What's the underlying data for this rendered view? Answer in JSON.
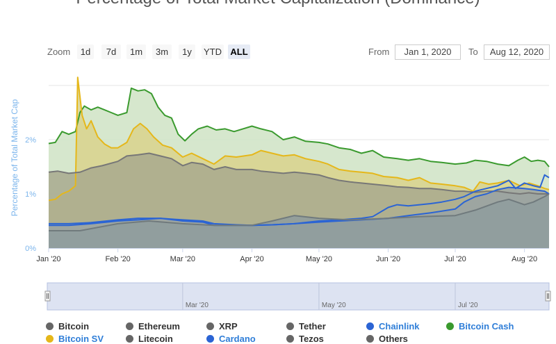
{
  "title": "Percentage of Total Market Capitalization (Dominance)",
  "zoom": {
    "label": "Zoom",
    "buttons": [
      "1d",
      "7d",
      "1m",
      "3m",
      "1y",
      "YTD",
      "ALL"
    ],
    "active": "ALL"
  },
  "range": {
    "from_label": "From",
    "from_value": "Jan 1, 2020",
    "to_label": "To",
    "to_value": "Aug 12, 2020"
  },
  "navigator": {
    "labels": [
      "Mar '20",
      "May '20",
      "Jul '20"
    ]
  },
  "legend": [
    {
      "name": "Bitcoin",
      "color": "#666666"
    },
    {
      "name": "Ethereum",
      "color": "#666666"
    },
    {
      "name": "XRP",
      "color": "#666666"
    },
    {
      "name": "Tether",
      "color": "#666666"
    },
    {
      "name": "Chainlink",
      "color": "#2b64d4"
    },
    {
      "name": "Bitcoin Cash",
      "color": "#3a9a2e"
    },
    {
      "name": "Bitcoin SV",
      "color": "#e5b71a"
    },
    {
      "name": "Litecoin",
      "color": "#666666"
    },
    {
      "name": "Cardano",
      "color": "#2b64d4"
    },
    {
      "name": "Tezos",
      "color": "#666666"
    },
    {
      "name": "Others",
      "color": "#666666"
    }
  ],
  "chart_data": {
    "type": "area",
    "ylabel": "Percentage of Total Market Cap",
    "ylim": [
      0,
      3
    ],
    "yticks": [
      "0%",
      "1%",
      "2%"
    ],
    "yticks_values": [
      0,
      1,
      2
    ],
    "x_domain": [
      "2020-01-01",
      "2020-08-12"
    ],
    "x_ticks": [
      {
        "label": "Jan '20",
        "date": "2020-01-01"
      },
      {
        "label": "Feb '20",
        "date": "2020-02-01"
      },
      {
        "label": "Mar '20",
        "date": "2020-03-01"
      },
      {
        "label": "Apr '20",
        "date": "2020-04-01"
      },
      {
        "label": "May '20",
        "date": "2020-05-01"
      },
      {
        "label": "Jun '20",
        "date": "2020-06-01"
      },
      {
        "label": "Jul '20",
        "date": "2020-07-01"
      },
      {
        "label": "Aug '20",
        "date": "2020-08-01"
      }
    ],
    "grid": true,
    "legend_position": "bottom",
    "series": [
      {
        "name": "Bitcoin Cash",
        "color": "#3a9a2e",
        "fill": "#cfe3c4",
        "points": [
          [
            "2020-01-01",
            1.93
          ],
          [
            "2020-01-04",
            1.95
          ],
          [
            "2020-01-07",
            2.15
          ],
          [
            "2020-01-10",
            2.1
          ],
          [
            "2020-01-13",
            2.15
          ],
          [
            "2020-01-15",
            2.5
          ],
          [
            "2020-01-17",
            2.62
          ],
          [
            "2020-01-20",
            2.55
          ],
          [
            "2020-01-23",
            2.6
          ],
          [
            "2020-01-26",
            2.55
          ],
          [
            "2020-01-29",
            2.5
          ],
          [
            "2020-02-01",
            2.45
          ],
          [
            "2020-02-05",
            2.5
          ],
          [
            "2020-02-07",
            2.95
          ],
          [
            "2020-02-10",
            2.9
          ],
          [
            "2020-02-13",
            2.92
          ],
          [
            "2020-02-16",
            2.85
          ],
          [
            "2020-02-19",
            2.6
          ],
          [
            "2020-02-22",
            2.45
          ],
          [
            "2020-02-25",
            2.4
          ],
          [
            "2020-02-28",
            2.1
          ],
          [
            "2020-03-02",
            1.98
          ],
          [
            "2020-03-05",
            2.1
          ],
          [
            "2020-03-08",
            2.2
          ],
          [
            "2020-03-12",
            2.25
          ],
          [
            "2020-03-16",
            2.18
          ],
          [
            "2020-03-20",
            2.2
          ],
          [
            "2020-03-24",
            2.15
          ],
          [
            "2020-03-28",
            2.2
          ],
          [
            "2020-04-01",
            2.25
          ],
          [
            "2020-04-05",
            2.2
          ],
          [
            "2020-04-10",
            2.15
          ],
          [
            "2020-04-15",
            2.0
          ],
          [
            "2020-04-20",
            2.05
          ],
          [
            "2020-04-25",
            1.97
          ],
          [
            "2020-05-01",
            1.95
          ],
          [
            "2020-05-05",
            1.92
          ],
          [
            "2020-05-10",
            1.85
          ],
          [
            "2020-05-15",
            1.82
          ],
          [
            "2020-05-20",
            1.75
          ],
          [
            "2020-05-25",
            1.8
          ],
          [
            "2020-05-30",
            1.68
          ],
          [
            "2020-06-05",
            1.65
          ],
          [
            "2020-06-10",
            1.62
          ],
          [
            "2020-06-15",
            1.65
          ],
          [
            "2020-06-20",
            1.6
          ],
          [
            "2020-06-25",
            1.58
          ],
          [
            "2020-07-01",
            1.55
          ],
          [
            "2020-07-06",
            1.57
          ],
          [
            "2020-07-10",
            1.62
          ],
          [
            "2020-07-15",
            1.6
          ],
          [
            "2020-07-20",
            1.55
          ],
          [
            "2020-07-25",
            1.52
          ],
          [
            "2020-07-29",
            1.62
          ],
          [
            "2020-08-01",
            1.68
          ],
          [
            "2020-08-04",
            1.6
          ],
          [
            "2020-08-07",
            1.62
          ],
          [
            "2020-08-10",
            1.6
          ],
          [
            "2020-08-12",
            1.5
          ]
        ]
      },
      {
        "name": "Bitcoin SV",
        "color": "#e5b71a",
        "fill": "#d9d28c",
        "points": [
          [
            "2020-01-01",
            0.88
          ],
          [
            "2020-01-04",
            0.9
          ],
          [
            "2020-01-07",
            1.0
          ],
          [
            "2020-01-10",
            1.05
          ],
          [
            "2020-01-13",
            1.15
          ],
          [
            "2020-01-14",
            3.15
          ],
          [
            "2020-01-16",
            2.45
          ],
          [
            "2020-01-18",
            2.2
          ],
          [
            "2020-01-20",
            2.35
          ],
          [
            "2020-01-23",
            2.05
          ],
          [
            "2020-01-26",
            1.92
          ],
          [
            "2020-01-29",
            1.85
          ],
          [
            "2020-02-01",
            1.85
          ],
          [
            "2020-02-05",
            1.95
          ],
          [
            "2020-02-08",
            2.2
          ],
          [
            "2020-02-11",
            2.3
          ],
          [
            "2020-02-14",
            2.2
          ],
          [
            "2020-02-17",
            2.05
          ],
          [
            "2020-02-21",
            1.9
          ],
          [
            "2020-02-25",
            1.85
          ],
          [
            "2020-03-01",
            1.68
          ],
          [
            "2020-03-05",
            1.75
          ],
          [
            "2020-03-10",
            1.65
          ],
          [
            "2020-03-15",
            1.55
          ],
          [
            "2020-03-20",
            1.7
          ],
          [
            "2020-03-25",
            1.68
          ],
          [
            "2020-04-01",
            1.72
          ],
          [
            "2020-04-05",
            1.8
          ],
          [
            "2020-04-10",
            1.75
          ],
          [
            "2020-04-15",
            1.7
          ],
          [
            "2020-04-20",
            1.72
          ],
          [
            "2020-04-25",
            1.65
          ],
          [
            "2020-05-01",
            1.6
          ],
          [
            "2020-05-05",
            1.55
          ],
          [
            "2020-05-10",
            1.45
          ],
          [
            "2020-05-15",
            1.42
          ],
          [
            "2020-05-20",
            1.4
          ],
          [
            "2020-05-25",
            1.38
          ],
          [
            "2020-05-30",
            1.32
          ],
          [
            "2020-06-05",
            1.3
          ],
          [
            "2020-06-10",
            1.25
          ],
          [
            "2020-06-15",
            1.3
          ],
          [
            "2020-06-20",
            1.2
          ],
          [
            "2020-06-25",
            1.18
          ],
          [
            "2020-07-01",
            1.15
          ],
          [
            "2020-07-05",
            1.12
          ],
          [
            "2020-07-09",
            1.05
          ],
          [
            "2020-07-12",
            1.22
          ],
          [
            "2020-07-16",
            1.18
          ],
          [
            "2020-07-20",
            1.2
          ],
          [
            "2020-07-25",
            1.25
          ],
          [
            "2020-07-30",
            1.15
          ],
          [
            "2020-08-03",
            1.2
          ],
          [
            "2020-08-07",
            1.15
          ],
          [
            "2020-08-10",
            1.1
          ],
          [
            "2020-08-12",
            1.08
          ]
        ]
      },
      {
        "name": "Others",
        "color": "#777777",
        "fill": "#a8a98e",
        "points": [
          [
            "2020-01-01",
            1.4
          ],
          [
            "2020-01-05",
            1.42
          ],
          [
            "2020-01-10",
            1.38
          ],
          [
            "2020-01-15",
            1.4
          ],
          [
            "2020-01-20",
            1.48
          ],
          [
            "2020-01-25",
            1.52
          ],
          [
            "2020-02-01",
            1.6
          ],
          [
            "2020-02-05",
            1.7
          ],
          [
            "2020-02-10",
            1.72
          ],
          [
            "2020-02-15",
            1.75
          ],
          [
            "2020-02-20",
            1.7
          ],
          [
            "2020-02-25",
            1.65
          ],
          [
            "2020-03-01",
            1.52
          ],
          [
            "2020-03-05",
            1.58
          ],
          [
            "2020-03-10",
            1.55
          ],
          [
            "2020-03-15",
            1.45
          ],
          [
            "2020-03-20",
            1.5
          ],
          [
            "2020-03-25",
            1.45
          ],
          [
            "2020-04-01",
            1.45
          ],
          [
            "2020-04-05",
            1.42
          ],
          [
            "2020-04-10",
            1.4
          ],
          [
            "2020-04-15",
            1.38
          ],
          [
            "2020-04-20",
            1.4
          ],
          [
            "2020-04-25",
            1.38
          ],
          [
            "2020-05-01",
            1.35
          ],
          [
            "2020-05-05",
            1.3
          ],
          [
            "2020-05-10",
            1.25
          ],
          [
            "2020-05-15",
            1.22
          ],
          [
            "2020-05-20",
            1.2
          ],
          [
            "2020-05-25",
            1.18
          ],
          [
            "2020-06-01",
            1.15
          ],
          [
            "2020-06-05",
            1.13
          ],
          [
            "2020-06-10",
            1.12
          ],
          [
            "2020-06-15",
            1.1
          ],
          [
            "2020-06-20",
            1.1
          ],
          [
            "2020-06-25",
            1.08
          ],
          [
            "2020-07-01",
            1.05
          ],
          [
            "2020-07-05",
            1.05
          ],
          [
            "2020-07-10",
            1.03
          ],
          [
            "2020-07-15",
            1.05
          ],
          [
            "2020-07-20",
            1.05
          ],
          [
            "2020-07-25",
            1.02
          ],
          [
            "2020-07-30",
            1.0
          ],
          [
            "2020-08-03",
            1.02
          ],
          [
            "2020-08-07",
            1.0
          ],
          [
            "2020-08-12",
            1.0
          ]
        ]
      },
      {
        "name": "Chainlink",
        "color": "#2b64d4",
        "fill": "none",
        "points": [
          [
            "2020-01-01",
            0.45
          ],
          [
            "2020-01-10",
            0.45
          ],
          [
            "2020-01-20",
            0.47
          ],
          [
            "2020-02-01",
            0.52
          ],
          [
            "2020-02-10",
            0.55
          ],
          [
            "2020-02-20",
            0.55
          ],
          [
            "2020-03-01",
            0.52
          ],
          [
            "2020-03-10",
            0.5
          ],
          [
            "2020-03-15",
            0.45
          ],
          [
            "2020-03-25",
            0.43
          ],
          [
            "2020-04-01",
            0.42
          ],
          [
            "2020-04-10",
            0.43
          ],
          [
            "2020-04-20",
            0.45
          ],
          [
            "2020-05-01",
            0.5
          ],
          [
            "2020-05-10",
            0.52
          ],
          [
            "2020-05-20",
            0.55
          ],
          [
            "2020-05-25",
            0.58
          ],
          [
            "2020-06-01",
            0.75
          ],
          [
            "2020-06-05",
            0.8
          ],
          [
            "2020-06-10",
            0.78
          ],
          [
            "2020-06-15",
            0.8
          ],
          [
            "2020-06-20",
            0.82
          ],
          [
            "2020-06-25",
            0.85
          ],
          [
            "2020-07-01",
            0.9
          ],
          [
            "2020-07-05",
            0.95
          ],
          [
            "2020-07-10",
            1.05
          ],
          [
            "2020-07-15",
            1.1
          ],
          [
            "2020-07-20",
            1.15
          ],
          [
            "2020-07-25",
            1.25
          ],
          [
            "2020-07-28",
            1.1
          ],
          [
            "2020-08-01",
            1.2
          ],
          [
            "2020-08-05",
            1.15
          ],
          [
            "2020-08-08",
            1.12
          ],
          [
            "2020-08-10",
            1.35
          ],
          [
            "2020-08-12",
            1.3
          ]
        ]
      },
      {
        "name": "Cardano",
        "color": "#2b64d4",
        "fill": "#9aa3a5",
        "points": [
          [
            "2020-01-01",
            0.42
          ],
          [
            "2020-01-10",
            0.42
          ],
          [
            "2020-01-20",
            0.45
          ],
          [
            "2020-02-01",
            0.5
          ],
          [
            "2020-02-10",
            0.52
          ],
          [
            "2020-02-20",
            0.55
          ],
          [
            "2020-03-01",
            0.5
          ],
          [
            "2020-03-10",
            0.48
          ],
          [
            "2020-03-15",
            0.42
          ],
          [
            "2020-03-25",
            0.42
          ],
          [
            "2020-04-01",
            0.42
          ],
          [
            "2020-04-10",
            0.43
          ],
          [
            "2020-04-20",
            0.45
          ],
          [
            "2020-05-01",
            0.48
          ],
          [
            "2020-05-10",
            0.5
          ],
          [
            "2020-05-20",
            0.52
          ],
          [
            "2020-06-01",
            0.55
          ],
          [
            "2020-06-10",
            0.6
          ],
          [
            "2020-06-20",
            0.65
          ],
          [
            "2020-07-01",
            0.72
          ],
          [
            "2020-07-05",
            0.85
          ],
          [
            "2020-07-10",
            0.95
          ],
          [
            "2020-07-15",
            1.0
          ],
          [
            "2020-07-20",
            1.08
          ],
          [
            "2020-07-25",
            1.12
          ],
          [
            "2020-08-01",
            1.1
          ],
          [
            "2020-08-05",
            1.08
          ],
          [
            "2020-08-10",
            1.05
          ],
          [
            "2020-08-12",
            1.0
          ]
        ]
      },
      {
        "name": "Tezos",
        "color": "#707a7d",
        "fill": "#8f9c9e",
        "points": [
          [
            "2020-01-01",
            0.32
          ],
          [
            "2020-01-15",
            0.32
          ],
          [
            "2020-02-01",
            0.45
          ],
          [
            "2020-02-15",
            0.5
          ],
          [
            "2020-03-01",
            0.45
          ],
          [
            "2020-03-15",
            0.42
          ],
          [
            "2020-04-01",
            0.42
          ],
          [
            "2020-04-10",
            0.5
          ],
          [
            "2020-04-20",
            0.6
          ],
          [
            "2020-05-01",
            0.55
          ],
          [
            "2020-05-15",
            0.52
          ],
          [
            "2020-06-01",
            0.55
          ],
          [
            "2020-06-15",
            0.58
          ],
          [
            "2020-07-01",
            0.6
          ],
          [
            "2020-07-10",
            0.7
          ],
          [
            "2020-07-20",
            0.85
          ],
          [
            "2020-07-25",
            0.9
          ],
          [
            "2020-08-01",
            0.8
          ],
          [
            "2020-08-05",
            0.85
          ],
          [
            "2020-08-10",
            0.95
          ],
          [
            "2020-08-12",
            1.0
          ]
        ]
      }
    ]
  }
}
